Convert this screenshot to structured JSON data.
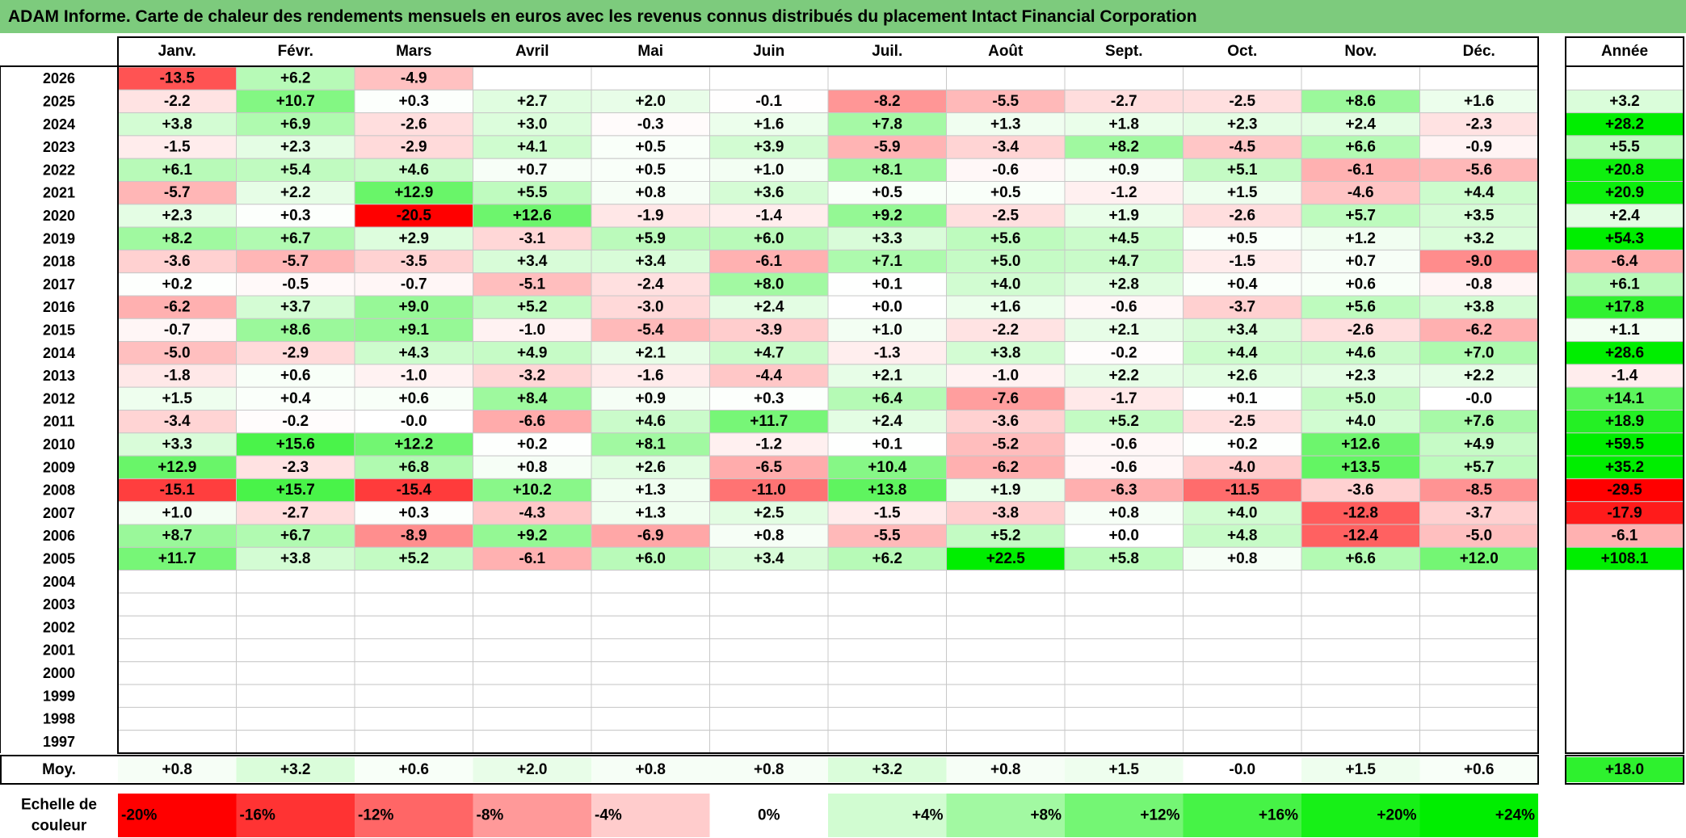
{
  "chart_data": {
    "type": "heatmap",
    "title": "ADAM Informe. Carte de chaleur des rendements mensuels en euros avec les revenus connus distribués du placement Intact Financial Corporation",
    "months": [
      "Janv.",
      "Févr.",
      "Mars",
      "Avril",
      "Mai",
      "Juin",
      "Juil.",
      "Août",
      "Sept.",
      "Oct.",
      "Nov.",
      "Déc."
    ],
    "year_header": "Année",
    "rows": [
      {
        "year": "2026",
        "values": [
          -13.5,
          6.2,
          -4.9,
          null,
          null,
          null,
          null,
          null,
          null,
          null,
          null,
          null
        ],
        "annual": null
      },
      {
        "year": "2025",
        "values": [
          -2.2,
          10.7,
          0.3,
          2.7,
          2.0,
          -0.1,
          -8.2,
          -5.5,
          -2.7,
          -2.5,
          8.6,
          1.6
        ],
        "annual": 3.2
      },
      {
        "year": "2024",
        "values": [
          3.8,
          6.9,
          -2.6,
          3.0,
          -0.3,
          1.6,
          7.8,
          1.3,
          1.8,
          2.3,
          2.4,
          -2.3
        ],
        "annual": 28.2
      },
      {
        "year": "2023",
        "values": [
          -1.5,
          2.3,
          -2.9,
          4.1,
          0.5,
          3.9,
          -5.9,
          -3.4,
          8.2,
          -4.5,
          6.6,
          -0.9
        ],
        "annual": 5.5
      },
      {
        "year": "2022",
        "values": [
          6.1,
          5.4,
          4.6,
          0.7,
          0.5,
          1.0,
          8.1,
          -0.6,
          0.9,
          5.1,
          -6.1,
          -5.6
        ],
        "annual": 20.8
      },
      {
        "year": "2021",
        "values": [
          -5.7,
          2.2,
          12.9,
          5.5,
          0.8,
          3.6,
          0.5,
          0.5,
          -1.2,
          1.5,
          -4.6,
          4.4
        ],
        "annual": 20.9
      },
      {
        "year": "2020",
        "values": [
          2.3,
          0.3,
          -20.5,
          12.6,
          -1.9,
          -1.4,
          9.2,
          -2.5,
          1.9,
          -2.6,
          5.7,
          3.5
        ],
        "annual": 2.4
      },
      {
        "year": "2019",
        "values": [
          8.2,
          6.7,
          2.9,
          -3.1,
          5.9,
          6.0,
          3.3,
          5.6,
          4.5,
          0.5,
          1.2,
          3.2
        ],
        "annual": 54.3
      },
      {
        "year": "2018",
        "values": [
          -3.6,
          -5.7,
          -3.5,
          3.4,
          3.4,
          -6.1,
          7.1,
          5.0,
          4.7,
          -1.5,
          0.7,
          -9.0
        ],
        "annual": -6.4
      },
      {
        "year": "2017",
        "values": [
          0.2,
          -0.5,
          -0.7,
          -5.1,
          -2.4,
          8.0,
          0.1,
          4.0,
          2.8,
          0.4,
          0.6,
          -0.8
        ],
        "annual": 6.1
      },
      {
        "year": "2016",
        "values": [
          -6.2,
          3.7,
          9.0,
          5.2,
          -3.0,
          2.4,
          0.0,
          1.6,
          -0.6,
          -3.7,
          5.6,
          3.8
        ],
        "annual": 17.8
      },
      {
        "year": "2015",
        "values": [
          -0.7,
          8.6,
          9.1,
          -1.0,
          -5.4,
          -3.9,
          1.0,
          -2.2,
          2.1,
          3.4,
          -2.6,
          -6.2
        ],
        "annual": 1.1
      },
      {
        "year": "2014",
        "values": [
          -5.0,
          -2.9,
          4.3,
          4.9,
          2.1,
          4.7,
          -1.3,
          3.8,
          -0.2,
          4.4,
          4.6,
          7.0
        ],
        "annual": 28.6
      },
      {
        "year": "2013",
        "values": [
          -1.8,
          0.6,
          -1.0,
          -3.2,
          -1.6,
          -4.4,
          2.1,
          -1.0,
          2.2,
          2.6,
          2.3,
          2.2
        ],
        "annual": -1.4
      },
      {
        "year": "2012",
        "values": [
          1.5,
          0.4,
          0.6,
          8.4,
          0.9,
          0.3,
          6.4,
          -7.6,
          -1.7,
          0.1,
          5.0,
          -0.0
        ],
        "annual": 14.1
      },
      {
        "year": "2011",
        "values": [
          -3.4,
          -0.2,
          -0.0,
          -6.6,
          4.6,
          11.7,
          2.4,
          -3.6,
          5.2,
          -2.5,
          4.0,
          7.6
        ],
        "annual": 18.9
      },
      {
        "year": "2010",
        "values": [
          3.3,
          15.6,
          12.2,
          0.2,
          8.1,
          -1.2,
          0.1,
          -5.2,
          -0.6,
          0.2,
          12.6,
          4.9
        ],
        "annual": 59.5
      },
      {
        "year": "2009",
        "values": [
          12.9,
          -2.3,
          6.8,
          0.8,
          2.6,
          -6.5,
          10.4,
          -6.2,
          -0.6,
          -4.0,
          13.5,
          5.7
        ],
        "annual": 35.2
      },
      {
        "year": "2008",
        "values": [
          -15.1,
          15.7,
          -15.4,
          10.2,
          1.3,
          -11.0,
          13.8,
          1.9,
          -6.3,
          -11.5,
          -3.6,
          -8.5
        ],
        "annual": -29.5
      },
      {
        "year": "2007",
        "values": [
          1.0,
          -2.7,
          0.3,
          -4.3,
          1.3,
          2.5,
          -1.5,
          -3.8,
          0.8,
          4.0,
          -12.8,
          -3.7
        ],
        "annual": -17.9
      },
      {
        "year": "2006",
        "values": [
          8.7,
          6.7,
          -8.9,
          9.2,
          -6.9,
          0.8,
          -5.5,
          5.2,
          0.0,
          4.8,
          -12.4,
          -5.0
        ],
        "annual": -6.1
      },
      {
        "year": "2005",
        "values": [
          11.7,
          3.8,
          5.2,
          -6.1,
          6.0,
          3.4,
          6.2,
          22.5,
          5.8,
          0.8,
          6.6,
          12.0
        ],
        "annual": 108.1
      },
      {
        "year": "2004",
        "values": [
          null,
          null,
          null,
          null,
          null,
          null,
          null,
          null,
          null,
          null,
          null,
          null
        ],
        "annual": null
      },
      {
        "year": "2003",
        "values": [
          null,
          null,
          null,
          null,
          null,
          null,
          null,
          null,
          null,
          null,
          null,
          null
        ],
        "annual": null
      },
      {
        "year": "2002",
        "values": [
          null,
          null,
          null,
          null,
          null,
          null,
          null,
          null,
          null,
          null,
          null,
          null
        ],
        "annual": null
      },
      {
        "year": "2001",
        "values": [
          null,
          null,
          null,
          null,
          null,
          null,
          null,
          null,
          null,
          null,
          null,
          null
        ],
        "annual": null
      },
      {
        "year": "2000",
        "values": [
          null,
          null,
          null,
          null,
          null,
          null,
          null,
          null,
          null,
          null,
          null,
          null
        ],
        "annual": null
      },
      {
        "year": "1999",
        "values": [
          null,
          null,
          null,
          null,
          null,
          null,
          null,
          null,
          null,
          null,
          null,
          null
        ],
        "annual": null
      },
      {
        "year": "1998",
        "values": [
          null,
          null,
          null,
          null,
          null,
          null,
          null,
          null,
          null,
          null,
          null,
          null
        ],
        "annual": null
      },
      {
        "year": "1997",
        "values": [
          null,
          null,
          null,
          null,
          null,
          null,
          null,
          null,
          null,
          null,
          null,
          null
        ],
        "annual": null
      }
    ],
    "average": {
      "label": "Moy.",
      "values": [
        0.8,
        3.2,
        0.6,
        2.0,
        0.8,
        0.8,
        3.2,
        0.8,
        1.5,
        -0.0,
        1.5,
        0.6
      ],
      "annual": 18.0
    },
    "color_scale": {
      "label_line1": "Echelle de",
      "label_line2": "couleur",
      "labels": [
        "-20%",
        "-16%",
        "-12%",
        "-8%",
        "-4%",
        "0%",
        "+4%",
        "+8%",
        "+12%",
        "+16%",
        "+20%",
        "+24%"
      ],
      "values": [
        -20,
        -16,
        -12,
        -8,
        -4,
        0,
        4,
        8,
        12,
        16,
        20,
        24
      ]
    },
    "colors": {
      "title_bar": "#7dcb7d",
      "negative_max": "#ff0000",
      "neutral": "#ffffff",
      "positive_max": "#00ee00",
      "grid": "#c8c8c8",
      "border": "#000000"
    }
  }
}
